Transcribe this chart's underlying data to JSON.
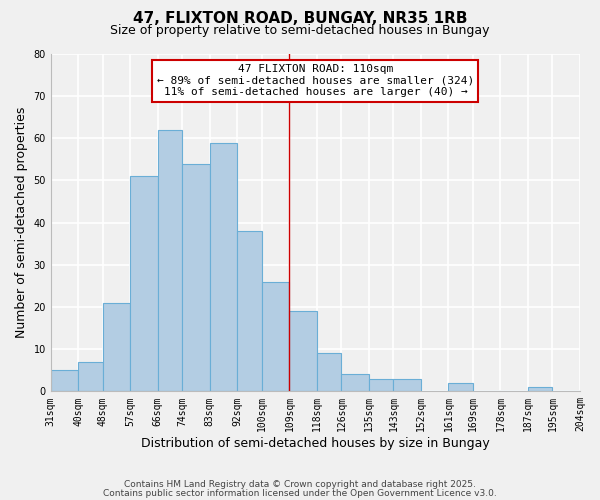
{
  "title": "47, FLIXTON ROAD, BUNGAY, NR35 1RB",
  "subtitle": "Size of property relative to semi-detached houses in Bungay",
  "xlabel": "Distribution of semi-detached houses by size in Bungay",
  "ylabel": "Number of semi-detached properties",
  "bins": [
    31,
    40,
    48,
    57,
    66,
    74,
    83,
    92,
    100,
    109,
    118,
    126,
    135,
    143,
    152,
    161,
    169,
    178,
    187,
    195,
    204
  ],
  "counts": [
    5,
    7,
    21,
    51,
    62,
    54,
    59,
    38,
    26,
    19,
    9,
    4,
    3,
    3,
    0,
    2,
    0,
    0,
    1,
    0
  ],
  "bar_color": "#b3cde3",
  "bar_edge_color": "#6aaed6",
  "bar_linewidth": 0.8,
  "vline_x": 109,
  "vline_color": "#cc0000",
  "annotation_title": "47 FLIXTON ROAD: 110sqm",
  "annotation_line1": "← 89% of semi-detached houses are smaller (324)",
  "annotation_line2": "11% of semi-detached houses are larger (40) →",
  "annotation_box_color": "#ffffff",
  "annotation_box_edge_color": "#cc0000",
  "ylim": [
    0,
    80
  ],
  "yticks": [
    0,
    10,
    20,
    30,
    40,
    50,
    60,
    70,
    80
  ],
  "tick_labels": [
    "31sqm",
    "40sqm",
    "48sqm",
    "57sqm",
    "66sqm",
    "74sqm",
    "83sqm",
    "92sqm",
    "100sqm",
    "109sqm",
    "118sqm",
    "126sqm",
    "135sqm",
    "143sqm",
    "152sqm",
    "161sqm",
    "169sqm",
    "178sqm",
    "187sqm",
    "195sqm",
    "204sqm"
  ],
  "footnote1": "Contains HM Land Registry data © Crown copyright and database right 2025.",
  "footnote2": "Contains public sector information licensed under the Open Government Licence v3.0.",
  "background_color": "#f0f0f0",
  "grid_color": "#ffffff",
  "title_fontsize": 11,
  "subtitle_fontsize": 9,
  "axis_label_fontsize": 9,
  "tick_fontsize": 7,
  "annotation_fontsize": 8,
  "footnote_fontsize": 6.5
}
